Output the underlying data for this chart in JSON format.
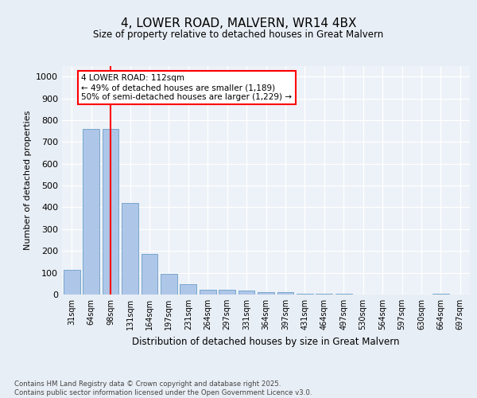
{
  "title": "4, LOWER ROAD, MALVERN, WR14 4BX",
  "subtitle": "Size of property relative to detached houses in Great Malvern",
  "xlabel": "Distribution of detached houses by size in Great Malvern",
  "ylabel": "Number of detached properties",
  "categories": [
    "31sqm",
    "64sqm",
    "98sqm",
    "131sqm",
    "164sqm",
    "197sqm",
    "231sqm",
    "264sqm",
    "297sqm",
    "331sqm",
    "364sqm",
    "397sqm",
    "431sqm",
    "464sqm",
    "497sqm",
    "530sqm",
    "564sqm",
    "597sqm",
    "630sqm",
    "664sqm",
    "697sqm"
  ],
  "values": [
    115,
    760,
    760,
    420,
    185,
    95,
    48,
    22,
    22,
    18,
    12,
    12,
    2,
    2,
    2,
    0,
    0,
    0,
    0,
    5,
    0
  ],
  "bar_color": "#aec6e8",
  "bar_edge_color": "#6a9fc8",
  "vline_x_index": 2,
  "vline_color": "red",
  "annotation_text": "4 LOWER ROAD: 112sqm\n← 49% of detached houses are smaller (1,189)\n50% of semi-detached houses are larger (1,229) →",
  "annotation_box_color": "white",
  "annotation_border_color": "red",
  "ylim": [
    0,
    1050
  ],
  "yticks": [
    0,
    100,
    200,
    300,
    400,
    500,
    600,
    700,
    800,
    900,
    1000
  ],
  "footer": "Contains HM Land Registry data © Crown copyright and database right 2025.\nContains public sector information licensed under the Open Government Licence v3.0.",
  "bg_color": "#e8eef5",
  "plot_bg_color": "#edf2f8",
  "grid_color": "white"
}
